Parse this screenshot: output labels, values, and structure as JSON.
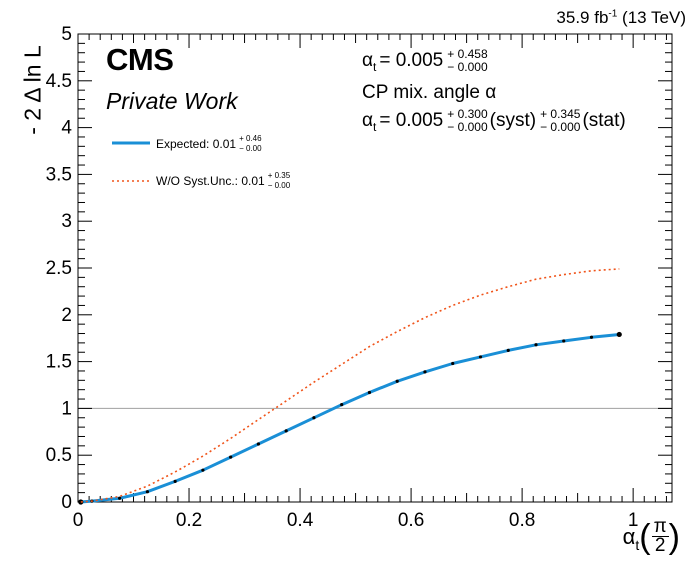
{
  "header": {
    "lumi": "35.9 fb",
    "lumi_sup": "-1",
    "energy": " (13 TeV)",
    "experiment": "CMS",
    "label": "Private Work"
  },
  "results": {
    "line1": {
      "symbol": "α",
      "sub": "t",
      "eq": "= 0.005",
      "up": "+ 0.458",
      "down": "− 0.000"
    },
    "line2": "CP mix. angle α",
    "line3": {
      "symbol": "α",
      "sub": "t",
      "eq": "= 0.005",
      "syst_up": "+ 0.300",
      "syst_down": "− 0.000",
      "syst_label": "(syst)",
      "stat_up": "+ 0.345",
      "stat_down": "− 0.000",
      "stat_label": "(stat)"
    }
  },
  "legend": {
    "entries": [
      {
        "label": "Expected: 0.01",
        "up": "+ 0.46",
        "down": "− 0.00",
        "color": "#1a8fd6",
        "style": "solid"
      },
      {
        "label": "W/O Syst.Unc.: 0.01",
        "up": "+ 0.35",
        "down": "− 0.00",
        "color": "#f0541a",
        "style": "dotted"
      }
    ]
  },
  "axes": {
    "ylabel": "- 2 Δ ln L",
    "xlabel_symbol": "α",
    "xlabel_sub": "t",
    "xlabel_num": "π",
    "xlabel_den": "2",
    "xticks": [
      "0",
      "0.2",
      "0.4",
      "0.6",
      "0.8",
      "1"
    ],
    "yticks": [
      "0",
      "0.5",
      "1",
      "1.5",
      "2",
      "2.5",
      "3",
      "3.5",
      "4",
      "4.5",
      "5"
    ]
  },
  "chart_data": {
    "type": "line",
    "xlim": [
      0,
      1.07
    ],
    "ylim": [
      0,
      5
    ],
    "reference_line": 1,
    "series": [
      {
        "name": "Expected: 0.01",
        "color": "#1a8fd6",
        "style": "solid",
        "markers": true,
        "x": [
          0.005,
          0.025,
          0.075,
          0.125,
          0.175,
          0.225,
          0.275,
          0.325,
          0.375,
          0.425,
          0.475,
          0.525,
          0.575,
          0.625,
          0.675,
          0.725,
          0.775,
          0.825,
          0.875,
          0.925,
          0.975
        ],
        "y": [
          0.0,
          0.01,
          0.04,
          0.11,
          0.22,
          0.34,
          0.48,
          0.62,
          0.76,
          0.9,
          1.04,
          1.17,
          1.29,
          1.39,
          1.48,
          1.55,
          1.62,
          1.68,
          1.72,
          1.76,
          1.79
        ]
      },
      {
        "name": "W/O Syst.Unc.: 0.01",
        "color": "#f0541a",
        "style": "dotted",
        "markers": false,
        "x": [
          0.005,
          0.025,
          0.075,
          0.125,
          0.175,
          0.225,
          0.275,
          0.325,
          0.375,
          0.425,
          0.475,
          0.525,
          0.575,
          0.625,
          0.675,
          0.725,
          0.775,
          0.825,
          0.875,
          0.925,
          0.975
        ],
        "y": [
          0.0,
          0.01,
          0.06,
          0.17,
          0.32,
          0.49,
          0.68,
          0.88,
          1.08,
          1.28,
          1.47,
          1.66,
          1.82,
          1.97,
          2.1,
          2.21,
          2.3,
          2.38,
          2.43,
          2.47,
          2.49
        ]
      }
    ]
  }
}
